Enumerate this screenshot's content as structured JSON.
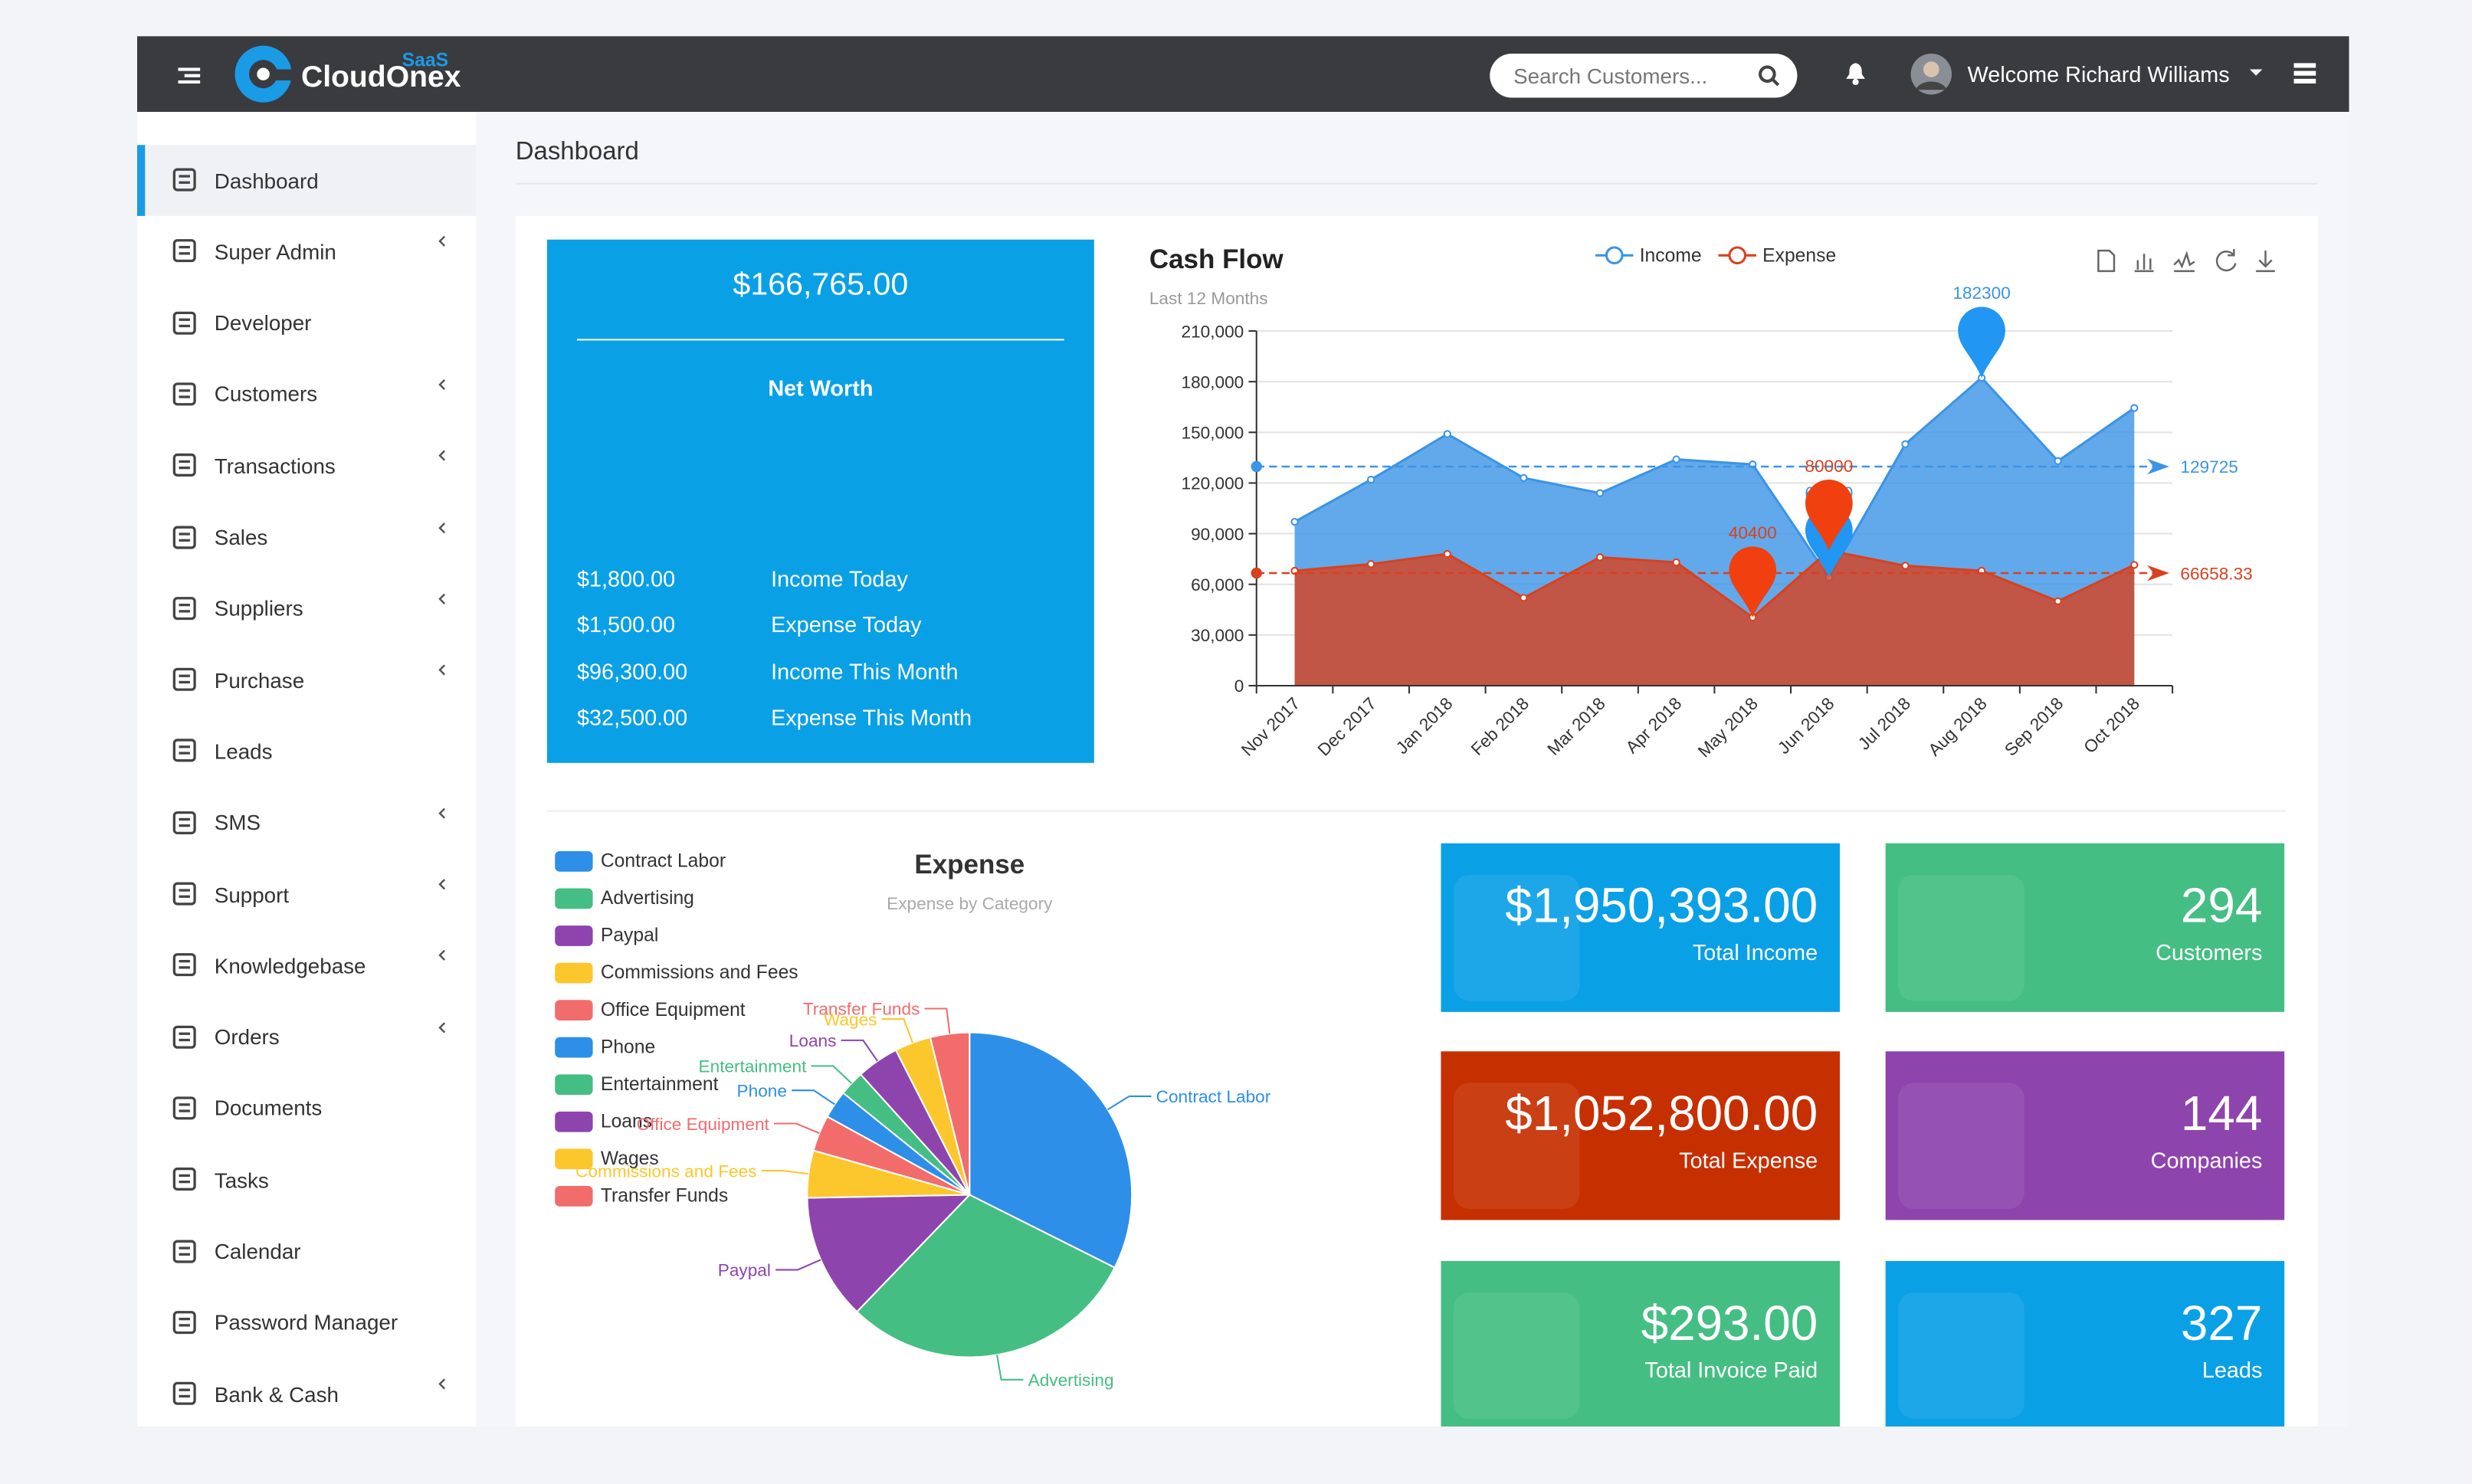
{
  "header": {
    "logo": "CloudOnex",
    "logo_badge": "SaaS",
    "search_placeholder": "Search Customers...",
    "welcome": "Welcome Richard Williams"
  },
  "sidebar": {
    "items": [
      {
        "label": "Dashboard",
        "submenu": false,
        "active": true
      },
      {
        "label": "Super Admin",
        "submenu": true
      },
      {
        "label": "Developer",
        "submenu": false
      },
      {
        "label": "Customers",
        "submenu": true
      },
      {
        "label": "Transactions",
        "submenu": true
      },
      {
        "label": "Sales",
        "submenu": true
      },
      {
        "label": "Suppliers",
        "submenu": true
      },
      {
        "label": "Purchase",
        "submenu": true
      },
      {
        "label": "Leads",
        "submenu": false
      },
      {
        "label": "SMS",
        "submenu": true
      },
      {
        "label": "Support",
        "submenu": true
      },
      {
        "label": "Knowledgebase",
        "submenu": true
      },
      {
        "label": "Orders",
        "submenu": true
      },
      {
        "label": "Documents",
        "submenu": false
      },
      {
        "label": "Tasks",
        "submenu": false
      },
      {
        "label": "Calendar",
        "submenu": false
      },
      {
        "label": "Password Manager",
        "submenu": false
      },
      {
        "label": "Bank & Cash",
        "submenu": true
      }
    ]
  },
  "page_title": "Dashboard",
  "net_worth": {
    "amount": "$166,765.00",
    "label": "Net Worth",
    "rows": [
      {
        "amount": "$1,800.00",
        "label": "Income Today"
      },
      {
        "amount": "$1,500.00",
        "label": "Expense Today"
      },
      {
        "amount": "$96,300.00",
        "label": "Income This Month"
      },
      {
        "amount": "$32,500.00",
        "label": "Expense This Month"
      }
    ]
  },
  "cash_flow": {
    "type": "area",
    "title": "Cash Flow",
    "subtitle": "Last 12 Months",
    "categories": [
      "Nov 2017",
      "Dec 2017",
      "Jan 2018",
      "Feb 2018",
      "Mar 2018",
      "Apr 2018",
      "May 2018",
      "Jun 2018",
      "Jul 2018",
      "Aug 2018",
      "Sep 2018",
      "Oct 2018"
    ],
    "series": [
      {
        "name": "Income",
        "color": "#3b94e6",
        "pin_color": "#2196f3",
        "values": [
          97000,
          122000,
          149000,
          123000,
          114000,
          134000,
          131000,
          64000,
          143000,
          182300,
          133000,
          164400
        ],
        "mean": 129725
      },
      {
        "name": "Expense",
        "color": "#d9411e",
        "pin_color": "#f0400f",
        "values": [
          68000,
          72000,
          78000,
          52000,
          76000,
          73000,
          40400,
          80000,
          71000,
          68000,
          50000,
          71500
        ],
        "mean": 66658.33
      }
    ],
    "ylim": [
      0,
      210000
    ],
    "yticks": [
      {
        "value": 0,
        "label": "0"
      },
      {
        "value": 30000,
        "label": "30,000"
      },
      {
        "value": 60000,
        "label": "60,000"
      },
      {
        "value": 90000,
        "label": "90,000"
      },
      {
        "value": 120000,
        "label": "120,000"
      },
      {
        "value": 150000,
        "label": "150,000"
      },
      {
        "value": 180000,
        "label": "180,000"
      },
      {
        "value": 210000,
        "label": "210,000"
      }
    ],
    "grid": true
  },
  "expense": {
    "type": "pie",
    "title": "Expense",
    "subtitle": "Expense by Category",
    "categories": [
      "Contract Labor",
      "Advertising",
      "Paypal",
      "Commissions and Fees",
      "Office Equipment",
      "Phone",
      "Entertainment",
      "Loans",
      "Wages",
      "Transfer Funds"
    ],
    "values": [
      32.4,
      29.8,
      12.5,
      4.7,
      3.6,
      2.8,
      2.5,
      4.2,
      3.6,
      3.9
    ],
    "colors": [
      "#2d8fe8",
      "#45be83",
      "#8e44ad",
      "#fcc72c",
      "#f26c6c",
      "#2d8fe8",
      "#45be83",
      "#8e44ad",
      "#fcc72c",
      "#f26c6c"
    ]
  },
  "stats": [
    {
      "value": "$1,950,393.00",
      "label": "Total Income",
      "color": "#0aa0e6"
    },
    {
      "value": 294,
      "label": "Customers",
      "color": "#45be83"
    },
    {
      "value": "$1,052,800.00",
      "label": "Total Expense",
      "color": "#c62f00"
    },
    {
      "value": 144,
      "label": "Companies",
      "color": "#8e44ad"
    },
    {
      "value": "$293.00",
      "label": "Total Invoice Paid",
      "color": "#45be83"
    },
    {
      "value": 327,
      "label": "Leads",
      "color": "#0aa0e6"
    }
  ]
}
